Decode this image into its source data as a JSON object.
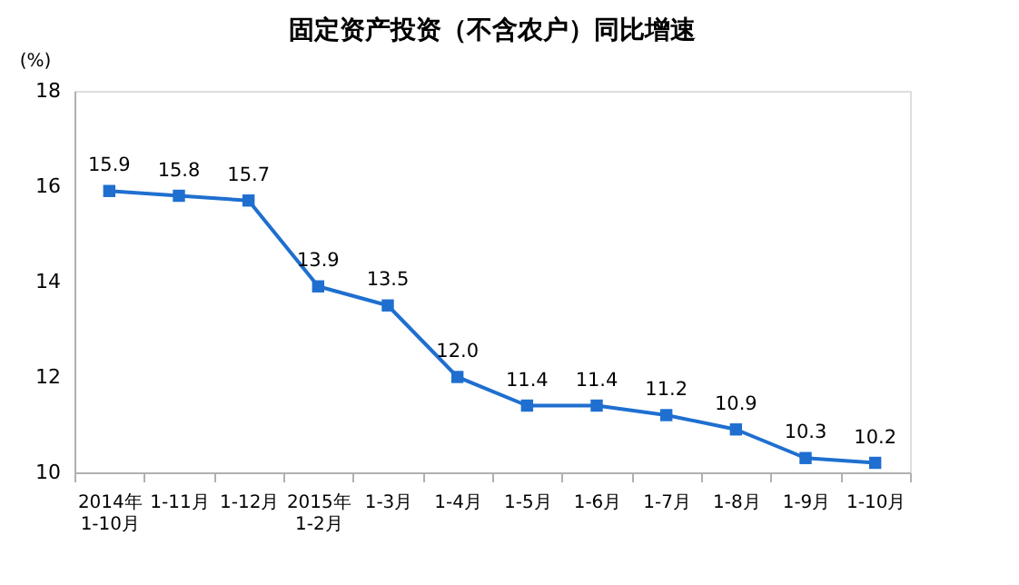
{
  "chart_data": {
    "type": "line",
    "title": "固定资产投资（不含农户）同比增速",
    "ylabel": "(%)",
    "categories": [
      "2014年\n1-10月",
      "1-11月",
      "1-12月",
      "2015年\n1-2月",
      "1-3月",
      "1-4月",
      "1-5月",
      "1-6月",
      "1-7月",
      "1-8月",
      "1-9月",
      "1-10月"
    ],
    "series": [
      {
        "color": "#1f6fd0",
        "values": [
          15.9,
          15.8,
          15.7,
          13.9,
          13.5,
          12.0,
          11.4,
          11.4,
          11.2,
          10.9,
          10.3,
          10.2
        ]
      }
    ],
    "value_labels": [
      "15.9",
      "15.8",
      "15.7",
      "13.9",
      "13.5",
      "12.0",
      "11.4",
      "11.4",
      "11.2",
      "10.9",
      "10.3",
      "10.2"
    ],
    "ylim": [
      10,
      18
    ],
    "yticks": [
      10,
      12,
      14,
      16,
      18
    ],
    "grid": false,
    "marker": "square",
    "line_style": "solid"
  }
}
